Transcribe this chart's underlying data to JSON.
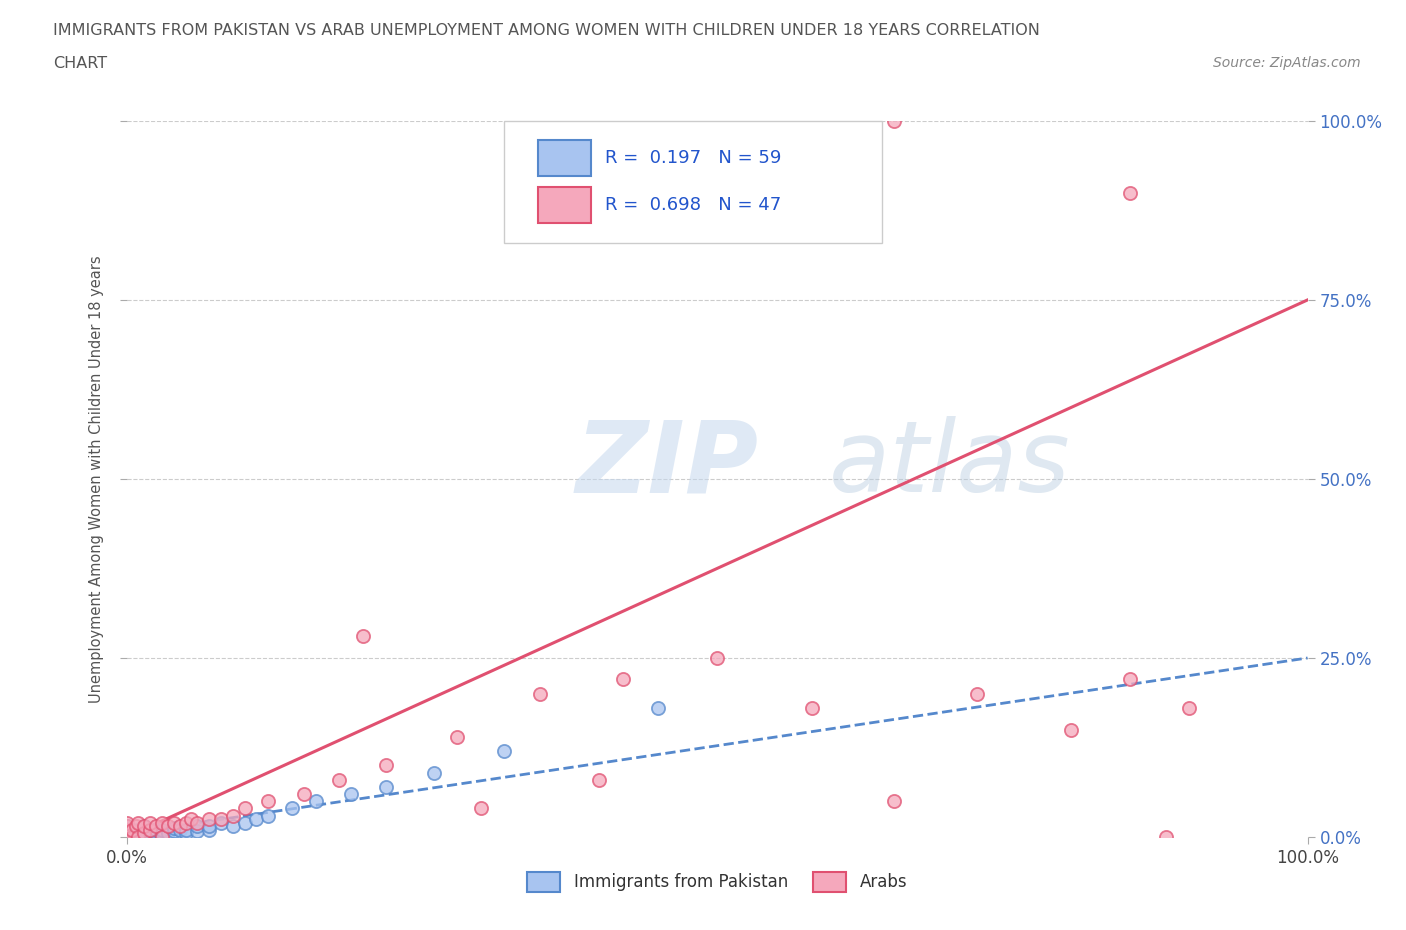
{
  "title_line1": "IMMIGRANTS FROM PAKISTAN VS ARAB UNEMPLOYMENT AMONG WOMEN WITH CHILDREN UNDER 18 YEARS CORRELATION",
  "title_line2": "CHART",
  "source": "Source: ZipAtlas.com",
  "ylabel": "Unemployment Among Women with Children Under 18 years",
  "ytick_labels": [
    "0.0%",
    "25.0%",
    "50.0%",
    "75.0%",
    "100.0%"
  ],
  "ytick_values": [
    0.0,
    0.25,
    0.5,
    0.75,
    1.0
  ],
  "pakistan_R": 0.197,
  "pakistan_N": 59,
  "arab_R": 0.698,
  "arab_N": 47,
  "pakistan_color": "#a8c4f0",
  "arab_color": "#f5a8bc",
  "pakistan_edge_color": "#5588cc",
  "arab_edge_color": "#e05070",
  "pakistan_line_color": "#5588cc",
  "arab_line_color": "#e05070",
  "legend_label_pakistan": "Immigrants from Pakistan",
  "legend_label_arab": "Arabs",
  "watermark_zip": "ZIP",
  "watermark_atlas": "atlas",
  "background_color": "#ffffff",
  "grid_color": "#cccccc",
  "xlim": [
    0.0,
    1.0
  ],
  "ylim": [
    0.0,
    1.0
  ],
  "arab_line_x": [
    0.0,
    1.0
  ],
  "arab_line_y": [
    0.0,
    0.75
  ],
  "pak_line_x": [
    0.0,
    1.0
  ],
  "pak_line_y": [
    0.005,
    0.25
  ],
  "pakistan_x": [
    0.0,
    0.0,
    0.0,
    0.0,
    0.0,
    0.0,
    0.0,
    0.0,
    0.0,
    0.0,
    0.0,
    0.0,
    0.0,
    0.0,
    0.0,
    0.005,
    0.005,
    0.005,
    0.005,
    0.007,
    0.01,
    0.01,
    0.01,
    0.012,
    0.015,
    0.015,
    0.015,
    0.015,
    0.02,
    0.02,
    0.02,
    0.02,
    0.025,
    0.025,
    0.03,
    0.03,
    0.03,
    0.035,
    0.04,
    0.04,
    0.045,
    0.05,
    0.05,
    0.06,
    0.06,
    0.07,
    0.07,
    0.08,
    0.09,
    0.1,
    0.11,
    0.12,
    0.14,
    0.16,
    0.19,
    0.22,
    0.26,
    0.32,
    0.45
  ],
  "pakistan_y": [
    0.0,
    0.0,
    0.0,
    0.0,
    0.0,
    0.0,
    0.0,
    0.0,
    0.0,
    0.005,
    0.005,
    0.008,
    0.01,
    0.01,
    0.015,
    0.0,
    0.005,
    0.008,
    0.01,
    0.0,
    0.0,
    0.005,
    0.01,
    0.005,
    0.0,
    0.005,
    0.008,
    0.015,
    0.0,
    0.005,
    0.008,
    0.01,
    0.005,
    0.01,
    0.0,
    0.005,
    0.01,
    0.005,
    0.008,
    0.012,
    0.01,
    0.005,
    0.01,
    0.008,
    0.015,
    0.01,
    0.015,
    0.02,
    0.015,
    0.02,
    0.025,
    0.03,
    0.04,
    0.05,
    0.06,
    0.07,
    0.09,
    0.12,
    0.18
  ],
  "arab_x": [
    0.0,
    0.0,
    0.0,
    0.0,
    0.0,
    0.005,
    0.005,
    0.008,
    0.01,
    0.01,
    0.015,
    0.015,
    0.02,
    0.02,
    0.025,
    0.03,
    0.03,
    0.035,
    0.04,
    0.045,
    0.05,
    0.055,
    0.06,
    0.07,
    0.08,
    0.09,
    0.1,
    0.12,
    0.15,
    0.18,
    0.22,
    0.28,
    0.35,
    0.42,
    0.5,
    0.58,
    0.65,
    0.72,
    0.8,
    0.85,
    0.88,
    0.9,
    0.65,
    0.85,
    0.2,
    0.3,
    0.4
  ],
  "arab_y": [
    0.0,
    0.005,
    0.01,
    0.015,
    0.02,
    0.0,
    0.01,
    0.015,
    0.0,
    0.02,
    0.005,
    0.015,
    0.01,
    0.02,
    0.015,
    0.0,
    0.02,
    0.015,
    0.02,
    0.015,
    0.02,
    0.025,
    0.02,
    0.025,
    0.025,
    0.03,
    0.04,
    0.05,
    0.06,
    0.08,
    0.1,
    0.14,
    0.2,
    0.22,
    0.25,
    0.18,
    0.05,
    0.2,
    0.15,
    0.22,
    0.0,
    0.18,
    1.0,
    0.9,
    0.28,
    0.04,
    0.08
  ]
}
